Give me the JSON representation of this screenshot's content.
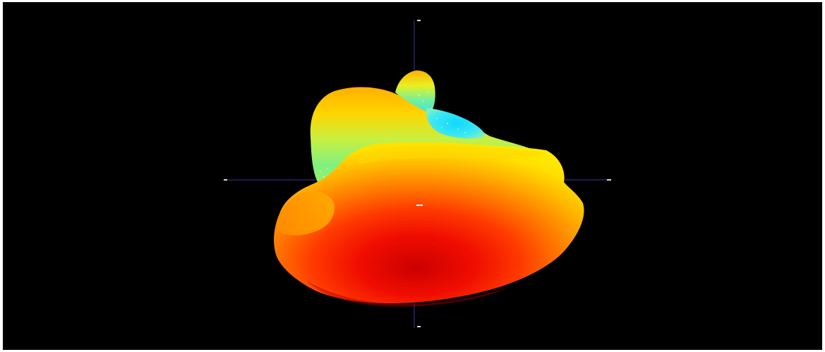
{
  "scene": {
    "background": "#000000",
    "frame_border": "#ffffff",
    "axis_color": "#3a3a9a",
    "colormap": [
      "#c80000",
      "#ff1a00",
      "#ff5a00",
      "#ff9a00",
      "#ffd400",
      "#c8ff40",
      "#60ff90",
      "#30e8ff"
    ],
    "axes": {
      "top": "",
      "bottom": "",
      "left": "",
      "right": "",
      "center": ""
    }
  }
}
